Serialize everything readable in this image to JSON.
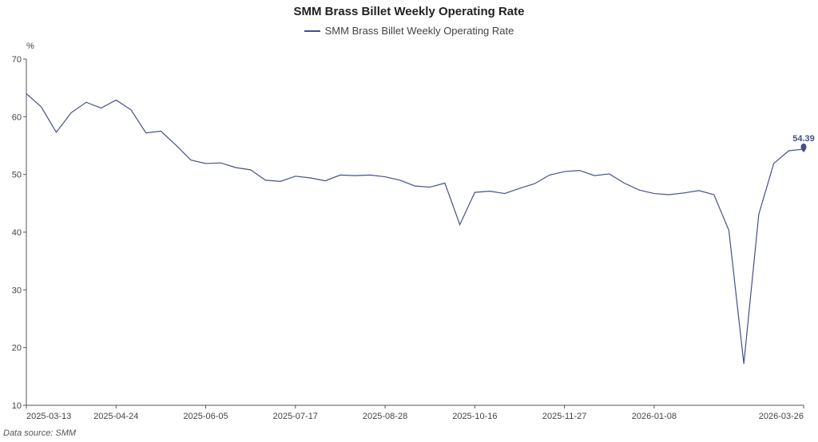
{
  "chart_data": {
    "type": "line",
    "title": "SMM Brass Billet Weekly Operating Rate",
    "ylabel": "%",
    "ylim": [
      10,
      70
    ],
    "yticks": [
      10,
      20,
      30,
      40,
      50,
      60,
      70
    ],
    "x_tick_labels": [
      "2025-03-13",
      "2025-04-24",
      "2025-06-05",
      "2025-07-17",
      "2025-08-28",
      "2025-10-16",
      "2025-11-27",
      "2026-01-08",
      "2026-03-26"
    ],
    "x_tick_indices": [
      0,
      6,
      12,
      18,
      24,
      30,
      36,
      42,
      52
    ],
    "grid": false,
    "legend": "top-center",
    "series": [
      {
        "name": "SMM Brass Billet Weekly Operating Rate",
        "color": "#44508d",
        "values": [
          64.0,
          61.7,
          57.3,
          60.7,
          62.5,
          61.5,
          62.9,
          61.2,
          57.2,
          57.5,
          55.1,
          52.5,
          51.9,
          52.0,
          51.2,
          50.8,
          49.0,
          48.8,
          49.7,
          49.4,
          48.9,
          49.9,
          49.8,
          49.9,
          49.6,
          49.0,
          48.0,
          47.8,
          48.5,
          41.3,
          46.9,
          47.1,
          46.7,
          47.6,
          48.4,
          49.9,
          50.5,
          50.7,
          49.8,
          50.1,
          48.5,
          47.3,
          46.7,
          46.5,
          46.8,
          47.2,
          46.5,
          40.3,
          17.2,
          43.1,
          51.9,
          54.1,
          54.39
        ]
      }
    ],
    "last_point_label": "54.39"
  },
  "footer": {
    "source": "Data source:  SMM"
  }
}
